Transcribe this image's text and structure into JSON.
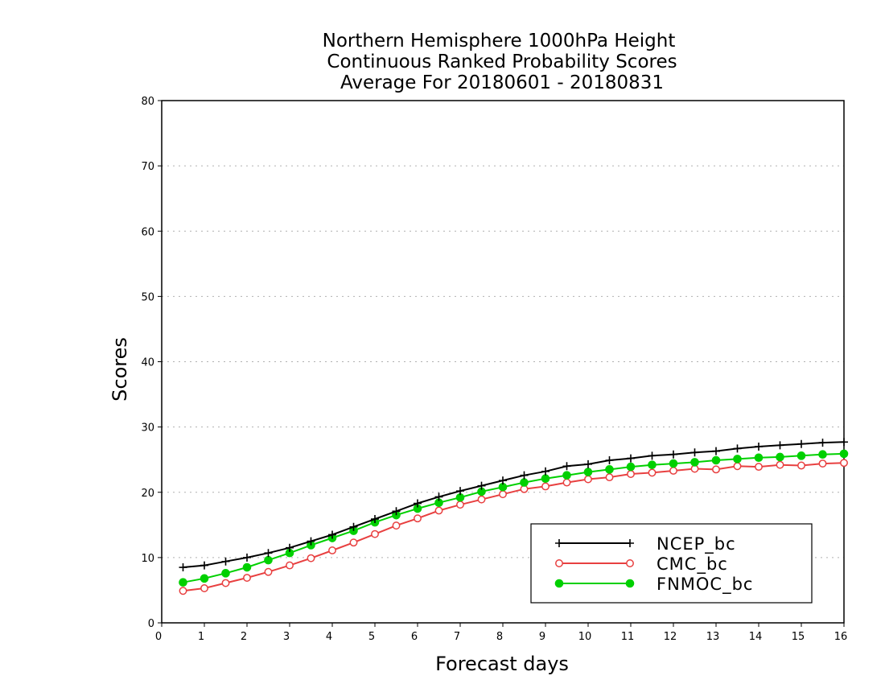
{
  "chart_data": {
    "type": "line",
    "title": [
      "Northern Hemisphere 1000hPa Height",
      "Continuous Ranked Probability Scores",
      "Average For 20180601 - 20180831"
    ],
    "xlabel": "Forecast days",
    "ylabel": "Scores",
    "xlim": [
      0,
      16
    ],
    "ylim": [
      0,
      80
    ],
    "x_ticks": [
      "0",
      "1",
      "2",
      "3",
      "4",
      "5",
      "6",
      "7",
      "8",
      "9",
      "10",
      "11",
      "12",
      "13",
      "14",
      "15",
      "16"
    ],
    "y_ticks": [
      "0",
      "10",
      "20",
      "30",
      "40",
      "50",
      "60",
      "70",
      "80"
    ],
    "grid": "horizontal dotted",
    "legend_position": "bottom-right",
    "x": [
      0.5,
      1,
      1.5,
      2,
      2.5,
      3,
      3.5,
      4,
      4.5,
      5,
      5.5,
      6,
      6.5,
      7,
      7.5,
      8,
      8.5,
      9,
      9.5,
      10,
      10.5,
      11,
      11.5,
      12,
      12.5,
      13,
      13.5,
      14,
      14.5,
      15,
      15.5,
      16
    ],
    "series": [
      {
        "name": "NCEP_bc",
        "color": "#000000",
        "marker": "plus",
        "values": [
          8.5,
          8.8,
          9.4,
          10.0,
          10.7,
          11.5,
          12.5,
          13.5,
          14.7,
          15.9,
          17.1,
          18.3,
          19.3,
          20.2,
          21.0,
          21.8,
          22.6,
          23.2,
          24.0,
          24.3,
          24.9,
          25.2,
          25.6,
          25.8,
          26.1,
          26.3,
          26.7,
          27.0,
          27.2,
          27.4,
          27.6,
          27.7
        ]
      },
      {
        "name": "CMC_bc",
        "color": "#e84040",
        "marker": "open-circle",
        "values": [
          4.9,
          5.3,
          6.1,
          6.9,
          7.8,
          8.8,
          9.9,
          11.1,
          12.3,
          13.6,
          14.9,
          16.0,
          17.2,
          18.1,
          18.9,
          19.7,
          20.5,
          20.9,
          21.5,
          22.0,
          22.3,
          22.8,
          23.0,
          23.3,
          23.6,
          23.5,
          24.0,
          23.9,
          24.2,
          24.1,
          24.4,
          24.5
        ]
      },
      {
        "name": "FNMOC_bc",
        "color": "#00d000",
        "marker": "filled-circle",
        "values": [
          6.2,
          6.8,
          7.6,
          8.5,
          9.6,
          10.7,
          11.9,
          13.0,
          14.1,
          15.4,
          16.5,
          17.5,
          18.4,
          19.2,
          20.1,
          20.8,
          21.5,
          22.1,
          22.6,
          23.1,
          23.5,
          23.9,
          24.2,
          24.4,
          24.6,
          24.9,
          25.1,
          25.3,
          25.4,
          25.6,
          25.8,
          25.9
        ]
      }
    ]
  }
}
